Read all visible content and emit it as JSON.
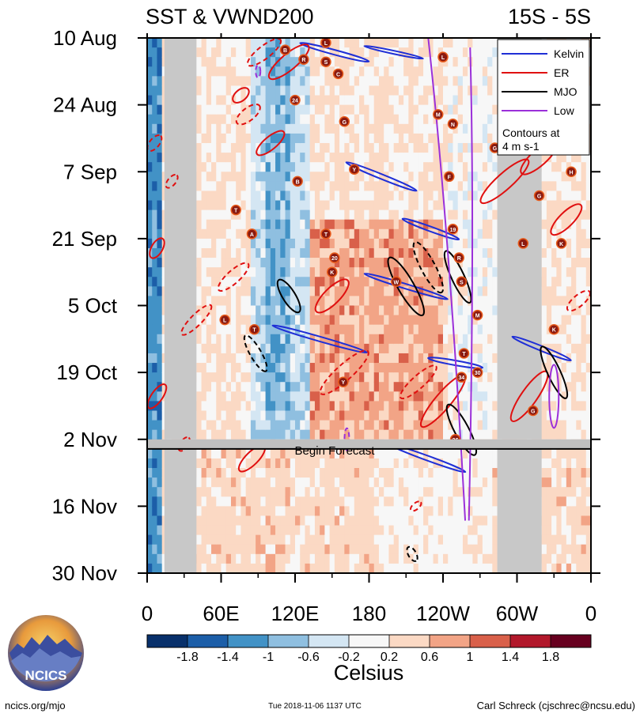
{
  "header": {
    "title_left": "SST & VWND200",
    "title_right": "15S - 5S"
  },
  "legend": {
    "items": [
      {
        "label": "Kelvin",
        "color": "#1f2fd6"
      },
      {
        "label": "ER",
        "color": "#e01010"
      },
      {
        "label": "MJO",
        "color": "#000000"
      },
      {
        "label": "Low",
        "color": "#9b30d9"
      }
    ],
    "note_line1": "Contours at",
    "note_line2": "4 m s-1"
  },
  "forecast_label": "Begin Forecast",
  "footer": {
    "url": "ncics.org/mjo",
    "timestamp": "Tue 2018-11-06 1137 UTC",
    "author": "Carl Schreck (cjschrec@ncsu.edu)",
    "logo_text": "NCICS"
  },
  "chart_data": {
    "type": "heatmap",
    "title": "SST & VWND200",
    "region": "15S - 5S",
    "x_axis": {
      "ticks": [
        "0",
        "60E",
        "120E",
        "180",
        "120W",
        "60W",
        "0"
      ],
      "tick_longitudes": [
        0,
        60,
        120,
        180,
        240,
        300,
        360
      ],
      "range": [
        0,
        360
      ]
    },
    "y_axis": {
      "ticks": [
        "10 Aug",
        "24 Aug",
        "7 Sep",
        "21 Sep",
        "5 Oct",
        "19 Oct",
        "2 Nov",
        "16 Nov",
        "30 Nov"
      ],
      "range_days_from_start": [
        0,
        112
      ],
      "direction": "time increases downward"
    },
    "forecast_start": "2018-11-04",
    "colorbar": {
      "label": "Celsius",
      "ticks": [
        "-1.8",
        "-1.4",
        "-1",
        "-0.6",
        "-0.2",
        "0.2",
        "0.6",
        "1",
        "1.4",
        "1.8"
      ],
      "colors": [
        "#08306b",
        "#1c5ea8",
        "#4292c6",
        "#8fbfe0",
        "#d4e6f3",
        "#f7f7f7",
        "#fbd9c4",
        "#f2a486",
        "#d9604a",
        "#b2182b",
        "#67001f"
      ]
    },
    "contour_interval": "4 m s-1",
    "land_masks_lon": [
      [
        14,
        40
      ],
      [
        284,
        320
      ]
    ],
    "series": [
      {
        "name": "Kelvin",
        "color": "#1f2fd6"
      },
      {
        "name": "ER",
        "color": "#e01010"
      },
      {
        "name": "MJO",
        "color": "#000000"
      },
      {
        "name": "Low",
        "color": "#9b30d9"
      }
    ],
    "storms": [
      {
        "label": "L",
        "lon": 145,
        "day": 1
      },
      {
        "label": "B",
        "lon": 112,
        "day": 2.5
      },
      {
        "label": "R",
        "lon": 127,
        "day": 4.5
      },
      {
        "label": "S",
        "lon": 145,
        "day": 5
      },
      {
        "label": "C",
        "lon": 155,
        "day": 7.5
      },
      {
        "label": "L",
        "lon": 240,
        "day": 4
      },
      {
        "label": "24",
        "lon": 120,
        "day": 13
      },
      {
        "label": "M",
        "lon": 236,
        "day": 16
      },
      {
        "label": "N",
        "lon": 248,
        "day": 18
      },
      {
        "label": "G",
        "lon": 160,
        "day": 17.5
      },
      {
        "label": "Y",
        "lon": 168,
        "day": 27.5
      },
      {
        "label": "B",
        "lon": 122,
        "day": 30
      },
      {
        "label": "F",
        "lon": 245,
        "day": 29
      },
      {
        "label": "G",
        "lon": 282,
        "day": 23
      },
      {
        "label": "H",
        "lon": 344,
        "day": 28
      },
      {
        "label": "T",
        "lon": 72,
        "day": 36
      },
      {
        "label": "A",
        "lon": 85,
        "day": 41
      },
      {
        "label": "T",
        "lon": 145,
        "day": 41
      },
      {
        "label": "G",
        "lon": 318,
        "day": 33
      },
      {
        "label": "L",
        "lon": 305,
        "day": 43
      },
      {
        "label": "K",
        "lon": 336,
        "day": 43
      },
      {
        "label": "20",
        "lon": 152,
        "day": 46
      },
      {
        "label": "K",
        "lon": 150,
        "day": 49
      },
      {
        "label": "W",
        "lon": 202,
        "day": 51
      },
      {
        "label": "19",
        "lon": 248,
        "day": 40
      },
      {
        "label": "R",
        "lon": 253,
        "day": 46
      },
      {
        "label": "S",
        "lon": 255,
        "day": 51
      },
      {
        "label": "L",
        "lon": 63,
        "day": 59
      },
      {
        "label": "T",
        "lon": 87,
        "day": 61
      },
      {
        "label": "M",
        "lon": 268,
        "day": 58
      },
      {
        "label": "K",
        "lon": 330,
        "day": 61
      },
      {
        "label": "T",
        "lon": 257,
        "day": 66
      },
      {
        "label": "34",
        "lon": 255,
        "day": 71
      },
      {
        "label": "30",
        "lon": 268,
        "day": 70
      },
      {
        "label": "Y",
        "lon": 159,
        "day": 72
      },
      {
        "label": "G",
        "lon": 313,
        "day": 78
      },
      {
        "label": "36",
        "lon": 250,
        "day": 84
      }
    ]
  }
}
